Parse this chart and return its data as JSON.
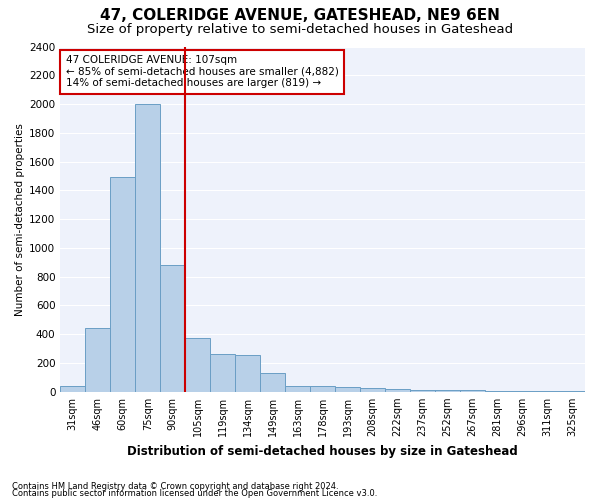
{
  "title1": "47, COLERIDGE AVENUE, GATESHEAD, NE9 6EN",
  "title2": "Size of property relative to semi-detached houses in Gateshead",
  "xlabel": "Distribution of semi-detached houses by size in Gateshead",
  "ylabel": "Number of semi-detached properties",
  "categories": [
    "31sqm",
    "46sqm",
    "60sqm",
    "75sqm",
    "90sqm",
    "105sqm",
    "119sqm",
    "134sqm",
    "149sqm",
    "163sqm",
    "178sqm",
    "193sqm",
    "208sqm",
    "222sqm",
    "237sqm",
    "252sqm",
    "267sqm",
    "281sqm",
    "296sqm",
    "311sqm",
    "325sqm"
  ],
  "values": [
    40,
    440,
    1490,
    2000,
    880,
    375,
    260,
    255,
    130,
    40,
    40,
    30,
    25,
    20,
    15,
    15,
    10,
    5,
    5,
    5,
    5
  ],
  "bar_color": "#b8d0e8",
  "bar_edge_color": "#6a9ec5",
  "vline_position": 4.5,
  "vline_color": "#cc0000",
  "annotation_text": "47 COLERIDGE AVENUE: 107sqm\n← 85% of semi-detached houses are smaller (4,882)\n14% of semi-detached houses are larger (819) →",
  "annotation_box_color": "#cc0000",
  "ylim": [
    0,
    2400
  ],
  "yticks": [
    0,
    200,
    400,
    600,
    800,
    1000,
    1200,
    1400,
    1600,
    1800,
    2000,
    2200,
    2400
  ],
  "footnote1": "Contains HM Land Registry data © Crown copyright and database right 2024.",
  "footnote2": "Contains public sector information licensed under the Open Government Licence v3.0.",
  "bg_color": "#eef2fb",
  "grid_color": "#ffffff",
  "title1_fontsize": 11,
  "title2_fontsize": 9.5
}
